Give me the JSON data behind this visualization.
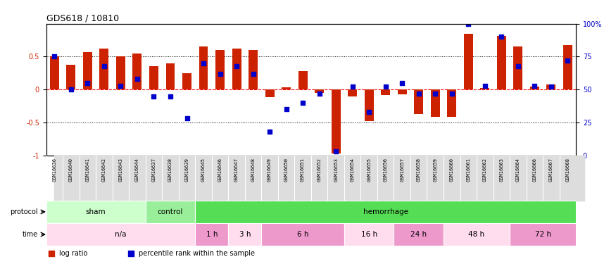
{
  "title": "GDS618 / 10810",
  "samples": [
    "GSM16636",
    "GSM16640",
    "GSM16641",
    "GSM16642",
    "GSM16643",
    "GSM16644",
    "GSM16637",
    "GSM16638",
    "GSM16639",
    "GSM16645",
    "GSM16646",
    "GSM16647",
    "GSM16648",
    "GSM16649",
    "GSM16650",
    "GSM16651",
    "GSM16652",
    "GSM16653",
    "GSM16654",
    "GSM16655",
    "GSM16656",
    "GSM16657",
    "GSM16658",
    "GSM16659",
    "GSM16660",
    "GSM16661",
    "GSM16662",
    "GSM16663",
    "GSM16664",
    "GSM16666",
    "GSM16667",
    "GSM16668"
  ],
  "log_ratio": [
    0.5,
    0.38,
    0.57,
    0.62,
    0.5,
    0.55,
    0.36,
    0.4,
    0.25,
    0.65,
    0.6,
    0.62,
    0.6,
    -0.12,
    0.03,
    0.28,
    -0.05,
    -0.97,
    -0.1,
    -0.48,
    -0.08,
    -0.07,
    -0.37,
    -0.42,
    -0.42,
    0.85,
    0.02,
    0.82,
    0.65,
    0.05,
    0.08,
    0.68
  ],
  "pct_rank": [
    0.75,
    0.5,
    0.55,
    0.68,
    0.53,
    0.58,
    0.45,
    0.45,
    0.28,
    0.7,
    0.62,
    0.68,
    0.62,
    0.18,
    0.35,
    0.4,
    0.47,
    0.03,
    0.52,
    0.33,
    0.52,
    0.55,
    0.47,
    0.47,
    0.47,
    1.0,
    0.53,
    0.9,
    0.68,
    0.53,
    0.52,
    0.72
  ],
  "protocol_groups": [
    {
      "label": "sham",
      "start": 0,
      "end": 6,
      "color": "#ccffcc"
    },
    {
      "label": "control",
      "start": 6,
      "end": 9,
      "color": "#99ee99"
    },
    {
      "label": "hemorrhage",
      "start": 9,
      "end": 32,
      "color": "#55dd55"
    }
  ],
  "time_groups": [
    {
      "label": "n/a",
      "start": 0,
      "end": 9,
      "color": "#ffddee"
    },
    {
      "label": "1 h",
      "start": 9,
      "end": 11,
      "color": "#ee99cc"
    },
    {
      "label": "3 h",
      "start": 11,
      "end": 13,
      "color": "#ffddee"
    },
    {
      "label": "6 h",
      "start": 13,
      "end": 18,
      "color": "#ee99cc"
    },
    {
      "label": "16 h",
      "start": 18,
      "end": 21,
      "color": "#ffddee"
    },
    {
      "label": "24 h",
      "start": 21,
      "end": 24,
      "color": "#ee99cc"
    },
    {
      "label": "48 h",
      "start": 24,
      "end": 28,
      "color": "#ffddee"
    },
    {
      "label": "72 h",
      "start": 28,
      "end": 32,
      "color": "#ee99cc"
    }
  ],
  "bar_color": "#cc2200",
  "dot_color": "#0000cc",
  "ylim": [
    -1,
    1
  ],
  "y2lim": [
    0,
    100
  ],
  "yticks_left": [
    -1,
    -0.5,
    0,
    0.5
  ],
  "ytick_labels_left": [
    "-1",
    "-0.5",
    "0",
    "0.5"
  ],
  "y2ticks": [
    0,
    25,
    50,
    75,
    100
  ],
  "y2tick_labels": [
    "0",
    "25",
    "50",
    "75",
    "100%"
  ],
  "hlines_dotted": [
    0.5,
    -0.5
  ],
  "hline_red_dashed": 0,
  "bar_width": 0.55,
  "dot_size": 22,
  "xtick_fontsize": 5.0,
  "xlabel_bg_color": "#dddddd"
}
